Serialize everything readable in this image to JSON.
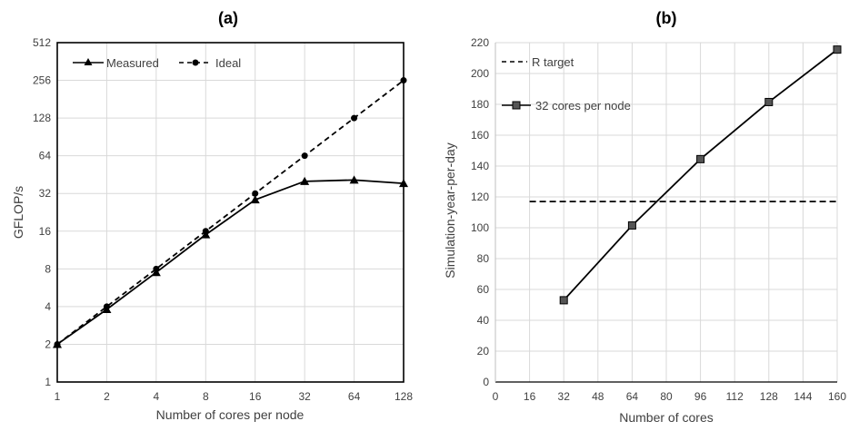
{
  "chart_data": [
    {
      "type": "line",
      "title": "(a)",
      "xlabel": "Number of cores per node",
      "ylabel": "GFLOP/s",
      "x_scale": "log2",
      "y_scale": "log2",
      "x": [
        1,
        2,
        4,
        8,
        16,
        32,
        64,
        128
      ],
      "x_ticks": [
        "1",
        "2",
        "4",
        "8",
        "16",
        "32",
        "64",
        "128"
      ],
      "y_ticks": [
        "1",
        "2",
        "4",
        "8",
        "16",
        "32",
        "64",
        "128",
        "256",
        "512"
      ],
      "xlim": [
        1,
        128
      ],
      "ylim": [
        1,
        512
      ],
      "grid": true,
      "legend_position": "top-left",
      "series": [
        {
          "name": "Measured",
          "style": "solid",
          "marker": "triangle",
          "color": "#000000",
          "values": [
            2,
            3.8,
            7.5,
            15,
            28.5,
            40,
            41,
            38.5
          ]
        },
        {
          "name": "Ideal",
          "style": "dashed",
          "marker": "circle",
          "color": "#000000",
          "values": [
            2,
            4,
            8,
            16,
            32,
            64,
            128,
            256
          ]
        }
      ]
    },
    {
      "type": "line",
      "title": "(b)",
      "xlabel": "Number of cores",
      "ylabel": "Simulation-year-per-day",
      "x_ticks": [
        "0",
        "16",
        "32",
        "48",
        "64",
        "80",
        "96",
        "112",
        "128",
        "144",
        "160"
      ],
      "y_ticks": [
        "0",
        "20",
        "40",
        "60",
        "80",
        "100",
        "120",
        "140",
        "160",
        "180",
        "200",
        "220"
      ],
      "xlim": [
        0,
        160
      ],
      "ylim": [
        0,
        220
      ],
      "grid": true,
      "legend_position": "top-left",
      "series": [
        {
          "name": "R target",
          "style": "dashed",
          "marker": "none",
          "color": "#000000",
          "x": [
            16,
            160
          ],
          "values": [
            117,
            117
          ]
        },
        {
          "name": "32 cores per node",
          "style": "solid",
          "marker": "square",
          "color": "#000000",
          "marker_fill": "#555555",
          "x": [
            32,
            64,
            96,
            128,
            160
          ],
          "values": [
            53,
            101.5,
            144.5,
            181.5,
            215.5
          ]
        }
      ]
    }
  ]
}
